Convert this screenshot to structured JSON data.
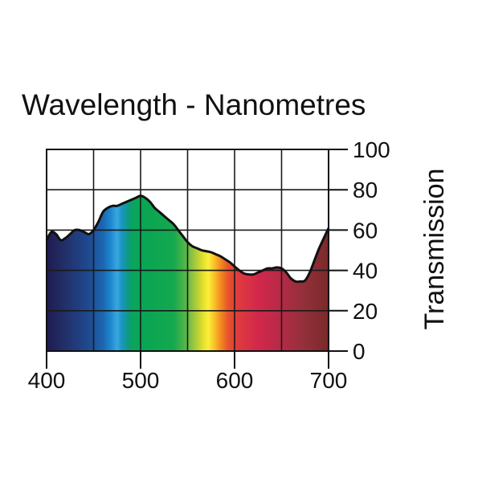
{
  "chart_data": {
    "type": "area",
    "title": "Wavelength - Nanometres",
    "xlabel": "Wavelength - Nanometres",
    "ylabel": "Transmission",
    "xlim": [
      400,
      700
    ],
    "ylim": [
      0,
      100
    ],
    "x_ticks": [
      "400",
      "500",
      "600",
      "700"
    ],
    "y_ticks": [
      "0",
      "20",
      "40",
      "60",
      "80",
      "100"
    ],
    "grid": true,
    "series": [
      {
        "name": "Transmission",
        "x": [
          400,
          405,
          410,
          415,
          420,
          425,
          430,
          435,
          440,
          445,
          450,
          455,
          460,
          465,
          470,
          475,
          480,
          485,
          490,
          495,
          500,
          505,
          510,
          515,
          520,
          525,
          530,
          535,
          540,
          545,
          550,
          555,
          560,
          565,
          570,
          575,
          580,
          585,
          590,
          595,
          600,
          605,
          610,
          615,
          620,
          625,
          630,
          635,
          640,
          645,
          650,
          655,
          660,
          665,
          670,
          675,
          680,
          685,
          690,
          695,
          700
        ],
        "values": [
          55,
          59,
          58,
          55,
          56,
          58,
          60,
          60,
          59,
          58,
          60,
          64,
          69,
          71,
          72,
          72,
          73,
          74,
          75,
          76,
          77,
          76,
          74,
          71,
          69,
          67,
          65,
          63,
          60,
          57,
          54,
          52,
          51,
          50,
          49.5,
          49,
          48,
          47,
          45.5,
          44,
          42,
          40,
          38.5,
          38,
          38,
          39,
          40,
          41,
          41,
          41.5,
          41,
          39,
          36,
          34.5,
          34.5,
          35,
          39,
          45,
          51,
          56,
          61
        ]
      }
    ],
    "spectrum_stops": [
      {
        "nm": 400,
        "color": "#1f1b4e"
      },
      {
        "nm": 420,
        "color": "#22306a"
      },
      {
        "nm": 445,
        "color": "#1f4a90"
      },
      {
        "nm": 460,
        "color": "#1c66b0"
      },
      {
        "nm": 468,
        "color": "#1d86cf"
      },
      {
        "nm": 475,
        "color": "#3aa7e1"
      },
      {
        "nm": 480,
        "color": "#1a95c4"
      },
      {
        "nm": 487,
        "color": "#0e9a7e"
      },
      {
        "nm": 493,
        "color": "#0aa65a"
      },
      {
        "nm": 505,
        "color": "#0aa653"
      },
      {
        "nm": 535,
        "color": "#14a84f"
      },
      {
        "nm": 548,
        "color": "#56b748"
      },
      {
        "nm": 558,
        "color": "#a5c93c"
      },
      {
        "nm": 566,
        "color": "#e1de2b"
      },
      {
        "nm": 572,
        "color": "#fbef3a"
      },
      {
        "nm": 578,
        "color": "#f8c52a"
      },
      {
        "nm": 585,
        "color": "#f28c21"
      },
      {
        "nm": 593,
        "color": "#e8542a"
      },
      {
        "nm": 602,
        "color": "#e03b3e"
      },
      {
        "nm": 625,
        "color": "#d2284b"
      },
      {
        "nm": 650,
        "color": "#b52a46"
      },
      {
        "nm": 672,
        "color": "#94303b"
      },
      {
        "nm": 700,
        "color": "#7a2a2a"
      }
    ]
  }
}
